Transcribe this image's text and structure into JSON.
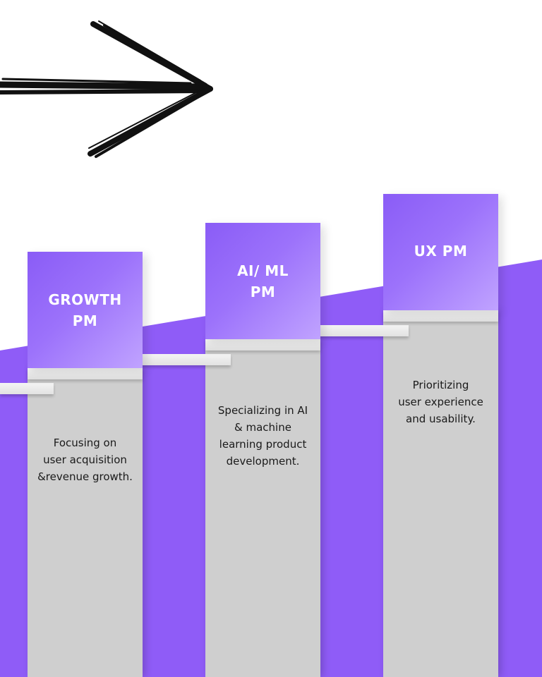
{
  "colors": {
    "purple": "#8f5cf7",
    "column_gray": "#cfcfcf",
    "header_gradient_start": "#8a5cf6",
    "header_gradient_end": "#c0a3ff",
    "ledge": "#ececec",
    "arrow": "#111111"
  },
  "decoration": {
    "arrow_icon": "hand-drawn-right-arrow-icon"
  },
  "steps": [
    {
      "title": "GROWTH\nPM",
      "description": "Focusing on\nuser acquisition\n&revenue growth."
    },
    {
      "title": "AI/ ML\nPM",
      "description": "Specializing in AI\n& machine\nlearning product\ndevelopment."
    },
    {
      "title": "UX PM",
      "description": "Prioritizing\nuser experience\nand usability."
    }
  ]
}
